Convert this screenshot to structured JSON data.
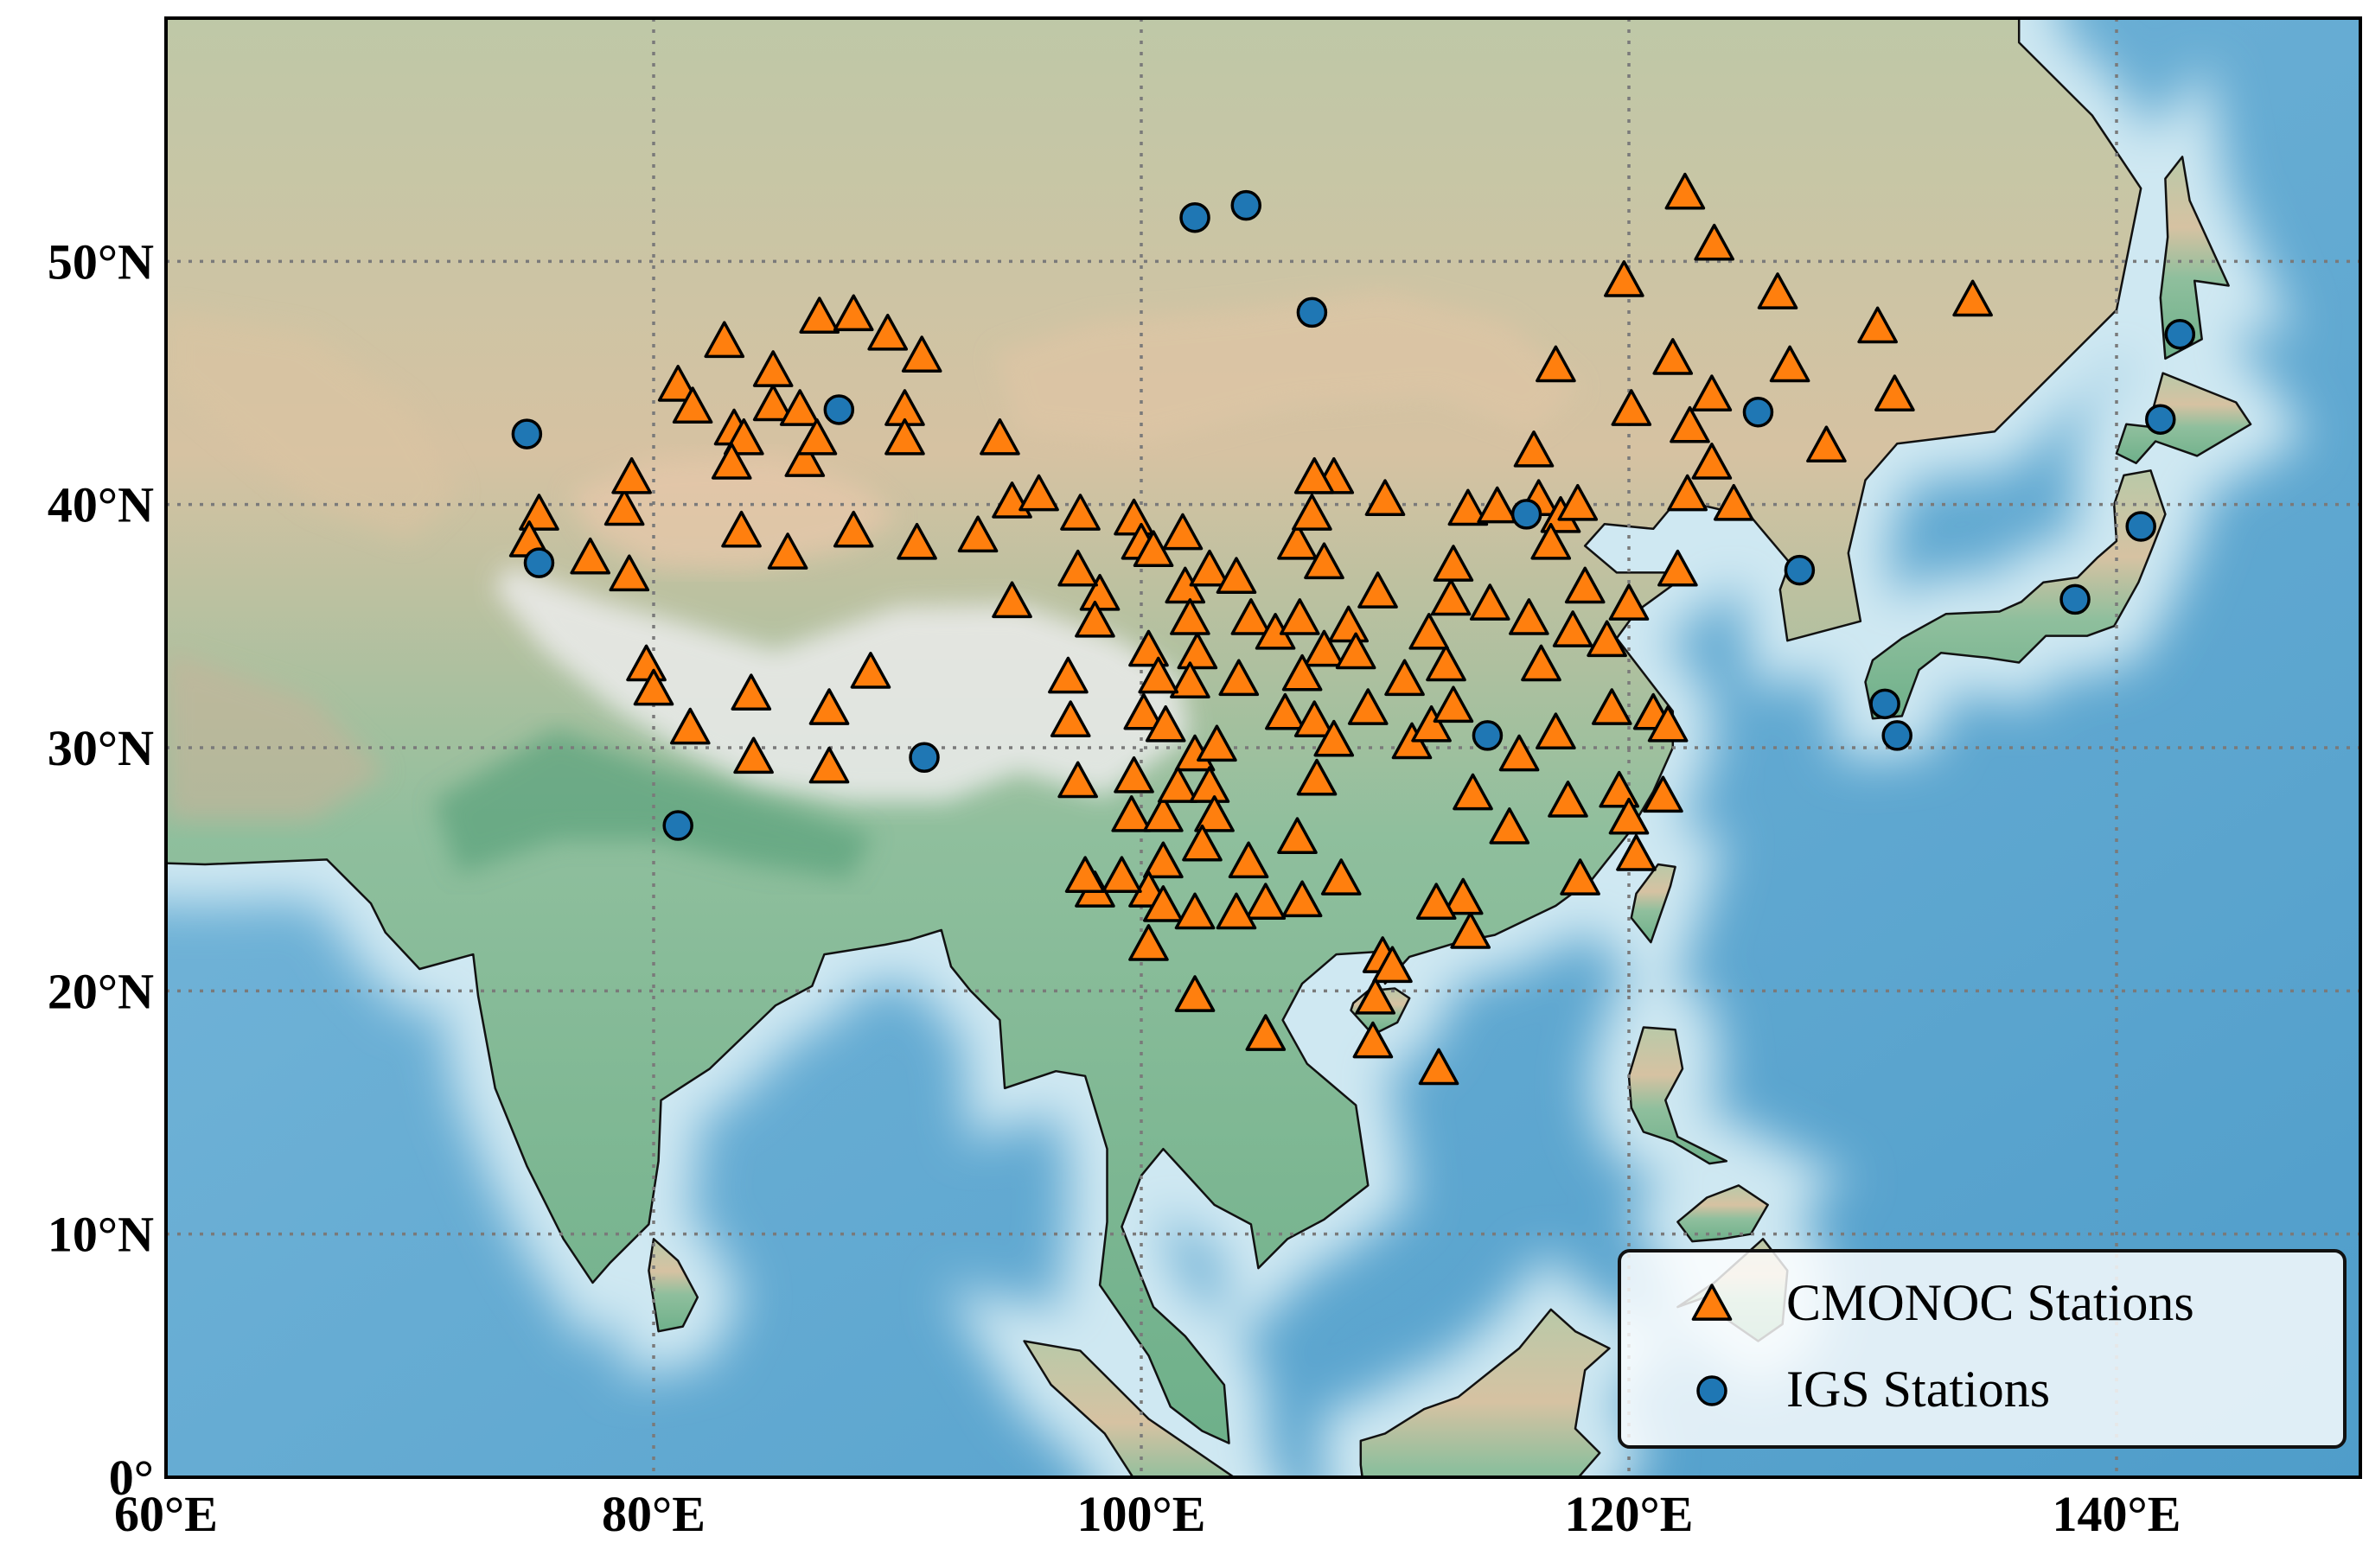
{
  "chart_data": {
    "type": "scatter",
    "xlim": [
      60,
      150
    ],
    "ylim": [
      0,
      60
    ],
    "xticks": [
      {
        "value": 60,
        "label": "60°E"
      },
      {
        "value": 80,
        "label": "80°E"
      },
      {
        "value": 100,
        "label": "100°E"
      },
      {
        "value": 120,
        "label": "120°E"
      },
      {
        "value": 140,
        "label": "140°E"
      }
    ],
    "yticks": [
      {
        "value": 0,
        "label": "0°"
      },
      {
        "value": 10,
        "label": "10°N"
      },
      {
        "value": 20,
        "label": "20°N"
      },
      {
        "value": 30,
        "label": "30°N"
      },
      {
        "value": 40,
        "label": "40°N"
      },
      {
        "value": 50,
        "label": "50°N"
      }
    ],
    "grid": true,
    "legend": "lower right",
    "edgecolor": "#000000",
    "series": [
      {
        "name": "CMONOC Stations",
        "color": "#ff7f0e",
        "marker": "triangle",
        "x": [
          75.3,
          74.9,
          77.4,
          79.0,
          78.8,
          79.1,
          79.7,
          80.0,
          81.5,
          81.0,
          81.6,
          82.9,
          83.3,
          83.7,
          83.2,
          84.9,
          84.9,
          86.0,
          86.2,
          83.6,
          86.8,
          88.2,
          86.7,
          89.6,
          91.0,
          90.3,
          90.3,
          85.5,
          88.2,
          90.8,
          93.3,
          94.2,
          94.7,
          95.8,
          94.7,
          84.0,
          84.1,
          87.2,
          87.2,
          88.9,
          97.5,
          98.3,
          98.1,
          97.4,
          97.0,
          97.1,
          97.4,
          99.7,
          100.0,
          100.5,
          101.7,
          101.8,
          102.8,
          103.9,
          102.0,
          102.3,
          102.0,
          100.3,
          100.7,
          100.1,
          101.0,
          102.2,
          103.1,
          104.0,
          104.5,
          105.5,
          106.4,
          107.0,
          107.9,
          107.1,
          107.5,
          106.5,
          107.5,
          108.5,
          108.8,
          106.6,
          105.9,
          107.1,
          107.9,
          109.3,
          107.2,
          106.4,
          108.2,
          106.6,
          105.1,
          105.1,
          102.2,
          109.9,
          110.3,
          109.6,
          109.5,
          112.2,
          99.7,
          99.6,
          100.9,
          101.5,
          102.8,
          103.0,
          102.5,
          100.9,
          100.3,
          99.2,
          98.1,
          97.7,
          100.9,
          102.2,
          103.9,
          104.4,
          100.3,
          109.7,
          110.0,
          110.8,
          111.1,
          111.9,
          112.5,
          111.8,
          112.7,
          112.8,
          113.4,
          114.6,
          114.3,
          112.8,
          113.6,
          113.2,
          113.5,
          112.1,
          115.1,
          115.5,
          116.1,
          116.3,
          117.2,
          116.8,
          115.9,
          116.4,
          117.7,
          118.2,
          119.1,
          119.3,
          120.0,
          119.6,
          120.0,
          121.0,
          121.6,
          118.0,
          117.0,
          117.9,
          117.0,
          119.8,
          120.1,
          121.8,
          122.5,
          123.4,
          122.4,
          124.3,
          122.3,
          123.5,
          126.1,
          126.6,
          128.1,
          130.2,
          130.9,
          134.1,
          121.4,
          120.3,
          117.5,
          123.4,
          122.0
        ],
        "y": [
          39.6,
          38.5,
          37.8,
          37.1,
          39.8,
          41.1,
          33.4,
          32.4,
          30.8,
          44.9,
          44.0,
          46.7,
          43.1,
          42.7,
          41.7,
          45.5,
          44.1,
          43.9,
          41.8,
          38.9,
          47.7,
          47.8,
          42.7,
          47.0,
          46.1,
          43.9,
          42.7,
          38.0,
          38.9,
          38.4,
          38.7,
          42.7,
          40.1,
          40.4,
          36.0,
          32.2,
          29.6,
          31.6,
          29.2,
          33.1,
          39.6,
          36.3,
          35.2,
          37.3,
          32.9,
          31.1,
          28.6,
          39.4,
          38.4,
          38.1,
          38.8,
          36.6,
          37.3,
          37.0,
          35.3,
          33.9,
          32.7,
          34.0,
          32.9,
          31.4,
          30.9,
          29.7,
          30.1,
          32.8,
          35.3,
          34.7,
          38.4,
          39.6,
          41.1,
          41.1,
          37.6,
          35.3,
          34.0,
          35.0,
          33.9,
          33.0,
          31.4,
          31.1,
          30.3,
          31.6,
          28.7,
          26.3,
          24.6,
          23.7,
          23.6,
          18.2,
          19.8,
          21.4,
          21.0,
          19.7,
          17.9,
          16.8,
          28.8,
          27.2,
          27.2,
          28.4,
          28.4,
          27.2,
          26.0,
          25.3,
          24.1,
          24.7,
          24.1,
          24.7,
          23.5,
          23.2,
          23.2,
          25.3,
          21.9,
          36.4,
          40.2,
          32.8,
          30.2,
          30.9,
          33.4,
          34.7,
          36.1,
          37.5,
          39.8,
          39.9,
          35.9,
          31.7,
          28.1,
          23.8,
          22.4,
          23.6,
          26.7,
          29.7,
          42.2,
          40.2,
          39.5,
          38.4,
          35.3,
          33.4,
          34.8,
          36.6,
          34.4,
          31.6,
          35.9,
          28.2,
          27.1,
          31.4,
          30.9,
          24.6,
          30.6,
          40.0,
          45.7,
          49.2,
          43.9,
          46.0,
          43.2,
          41.7,
          40.4,
          40.0,
          52.8,
          50.7,
          48.7,
          45.7,
          42.4,
          47.3,
          44.5,
          48.4,
          28.0,
          25.6,
          27.8,
          44.5,
          37.3
        ]
      },
      {
        "name": "IGS Stations",
        "color": "#1f77b4",
        "marker": "circle",
        "x": [
          74.8,
          75.3,
          87.6,
          91.1,
          81.0,
          102.2,
          104.3,
          107.0,
          114.2,
          115.8,
          125.3,
          127.0,
          130.5,
          131.0,
          138.3,
          141.0,
          141.8,
          142.6
        ],
        "y": [
          42.9,
          37.6,
          43.9,
          29.6,
          26.8,
          51.8,
          52.3,
          47.9,
          30.5,
          39.6,
          43.8,
          37.3,
          31.8,
          30.5,
          36.1,
          39.1,
          43.5,
          47.0
        ]
      }
    ]
  }
}
